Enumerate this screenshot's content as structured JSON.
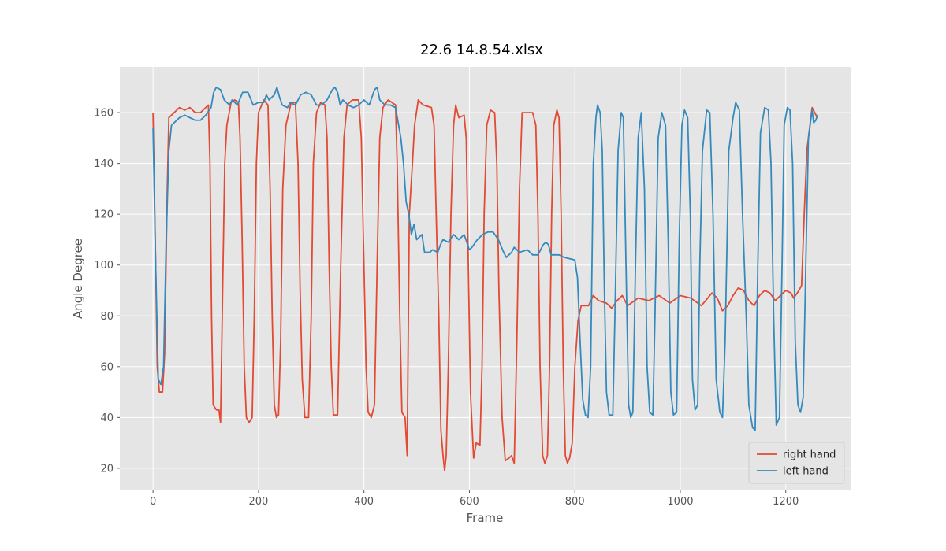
{
  "chart_data": {
    "type": "line",
    "title": "22.6 14.8.54.xlsx",
    "x_label": "Frame",
    "y_label": "Angle Degree",
    "xlim": [
      -63,
      1323
    ],
    "ylim": [
      11.6,
      178.0
    ],
    "xticks": [
      0,
      200,
      400,
      600,
      800,
      1000,
      1200
    ],
    "yticks": [
      20,
      40,
      60,
      80,
      100,
      120,
      140,
      160
    ],
    "grid": true,
    "legend": "lower right",
    "series": [
      {
        "name": "right hand",
        "color": "#E24A33",
        "x": [
          0,
          5,
          8,
          12,
          18,
          22,
          27,
          30,
          40,
          50,
          60,
          70,
          80,
          90,
          100,
          105,
          108,
          111,
          114,
          120,
          125,
          128,
          132,
          136,
          140,
          148,
          155,
          162,
          165,
          169,
          173,
          177,
          182,
          188,
          192,
          196,
          200,
          210,
          218,
          222,
          226,
          230,
          234,
          238,
          242,
          246,
          252,
          262,
          270,
          275,
          279,
          283,
          288,
          295,
          300,
          304,
          310,
          318,
          326,
          330,
          334,
          338,
          342,
          350,
          356,
          362,
          368,
          378,
          390,
          395,
          400,
          404,
          408,
          414,
          420,
          425,
          430,
          436,
          446,
          460,
          463,
          468,
          472,
          478,
          482,
          486,
          492,
          496,
          503,
          512,
          528,
          533,
          537,
          542,
          546,
          550,
          553,
          556,
          560,
          565,
          570,
          574,
          580,
          590,
          594,
          598,
          602,
          608,
          613,
          620,
          624,
          628,
          633,
          640,
          648,
          652,
          656,
          662,
          668,
          675,
          680,
          685,
          690,
          695,
          700,
          710,
          720,
          726,
          730,
          734,
          739,
          743,
          748,
          752,
          756,
          760,
          766,
          770,
          774,
          778,
          782,
          786,
          790,
          795,
          800,
          806,
          812,
          820,
          826,
          835,
          845,
          860,
          870,
          880,
          890,
          900,
          920,
          940,
          960,
          980,
          1000,
          1020,
          1040,
          1060,
          1070,
          1080,
          1090,
          1100,
          1110,
          1120,
          1130,
          1140,
          1150,
          1160,
          1170,
          1180,
          1190,
          1200,
          1210,
          1215,
          1225,
          1230,
          1235,
          1240,
          1250,
          1255,
          1260
        ],
        "values": [
          160,
          100,
          60,
          50,
          50,
          65,
          130,
          158,
          160,
          162,
          161,
          162,
          160,
          160,
          162,
          163,
          140,
          80,
          45,
          43,
          43,
          38,
          90,
          140,
          155,
          164,
          165,
          164,
          150,
          110,
          60,
          40,
          38,
          40,
          80,
          140,
          160,
          165,
          163,
          130,
          80,
          45,
          40,
          41,
          70,
          130,
          155,
          164,
          164,
          140,
          90,
          55,
          40,
          40,
          80,
          140,
          160,
          164,
          163,
          150,
          100,
          60,
          41,
          41,
          100,
          150,
          163,
          165,
          165,
          150,
          100,
          60,
          42,
          40,
          45,
          100,
          150,
          162,
          165,
          163,
          140,
          80,
          42,
          40,
          25,
          120,
          140,
          155,
          165,
          163,
          162,
          155,
          120,
          80,
          35,
          25,
          19,
          25,
          60,
          120,
          155,
          163,
          158,
          159,
          150,
          100,
          50,
          24,
          30,
          29,
          60,
          120,
          155,
          161,
          160,
          140,
          90,
          40,
          23,
          24,
          25,
          22,
          70,
          130,
          160,
          160,
          160,
          155,
          120,
          60,
          25,
          22,
          25,
          60,
          120,
          155,
          161,
          158,
          120,
          60,
          25,
          22,
          24,
          30,
          60,
          78,
          84,
          84,
          84,
          88,
          86,
          85,
          83,
          86,
          88,
          84,
          87,
          86,
          88,
          85,
          88,
          87,
          84,
          89,
          87,
          82,
          84,
          88,
          91,
          90,
          86,
          84,
          88,
          90,
          89,
          86,
          88,
          90,
          89,
          87,
          90,
          92,
          120,
          145,
          162,
          160,
          158
        ]
      },
      {
        "name": "left hand",
        "color": "#348ABD",
        "x": [
          0,
          5,
          10,
          15,
          20,
          25,
          30,
          35,
          50,
          60,
          70,
          80,
          90,
          100,
          110,
          115,
          120,
          128,
          135,
          145,
          150,
          160,
          170,
          180,
          190,
          200,
          210,
          215,
          220,
          230,
          235,
          240,
          245,
          255,
          260,
          270,
          280,
          290,
          300,
          305,
          310,
          320,
          330,
          340,
          345,
          350,
          355,
          360,
          370,
          380,
          390,
          400,
          410,
          420,
          425,
          430,
          440,
          450,
          460,
          470,
          475,
          480,
          485,
          490,
          495,
          500,
          510,
          515,
          525,
          530,
          540,
          545,
          550,
          560,
          570,
          580,
          590,
          600,
          605,
          615,
          625,
          635,
          645,
          655,
          665,
          670,
          680,
          685,
          695,
          710,
          720,
          730,
          740,
          745,
          750,
          755,
          765,
          770,
          780,
          800,
          805,
          810,
          815,
          820,
          825,
          830,
          835,
          840,
          843,
          848,
          852,
          856,
          860,
          865,
          872,
          876,
          882,
          888,
          892,
          897,
          902,
          906,
          910,
          915,
          920,
          926,
          932,
          937,
          942,
          948,
          952,
          958,
          965,
          972,
          977,
          982,
          987,
          993,
          998,
          1003,
          1008,
          1014,
          1019,
          1023,
          1028,
          1033,
          1037,
          1042,
          1050,
          1056,
          1062,
          1068,
          1075,
          1080,
          1085,
          1092,
          1100,
          1105,
          1112,
          1118,
          1125,
          1130,
          1137,
          1142,
          1147,
          1152,
          1160,
          1167,
          1172,
          1177,
          1182,
          1188,
          1193,
          1197,
          1203,
          1208,
          1213,
          1218,
          1223,
          1228,
          1233,
          1238,
          1243,
          1250,
          1253,
          1257,
          1260
        ],
        "values": [
          154,
          100,
          55,
          53,
          60,
          110,
          145,
          155,
          158,
          159,
          158,
          157,
          157,
          159,
          162,
          168,
          170,
          169,
          165,
          163,
          165,
          163,
          168,
          168,
          163,
          164,
          164,
          167,
          165,
          167,
          170,
          166,
          163,
          162,
          164,
          163,
          167,
          168,
          167,
          165,
          163,
          163,
          165,
          169,
          170,
          168,
          163,
          165,
          163,
          162,
          163,
          165,
          163,
          169,
          170,
          165,
          163,
          163,
          162,
          150,
          140,
          125,
          120,
          112,
          116,
          110,
          112,
          105,
          105,
          106,
          105,
          108,
          110,
          109,
          112,
          110,
          112,
          106,
          107,
          110,
          112,
          113,
          113,
          110,
          105,
          103,
          105,
          107,
          105,
          106,
          104,
          104,
          108,
          109,
          108,
          104,
          104,
          104,
          103,
          102,
          95,
          70,
          47,
          41,
          40,
          60,
          140,
          158,
          163,
          160,
          145,
          90,
          50,
          41,
          41,
          80,
          145,
          160,
          158,
          100,
          45,
          40,
          42,
          100,
          150,
          160,
          130,
          60,
          42,
          41,
          80,
          150,
          160,
          155,
          110,
          50,
          41,
          42,
          110,
          155,
          161,
          158,
          120,
          55,
          43,
          45,
          100,
          145,
          161,
          160,
          120,
          55,
          42,
          40,
          70,
          145,
          158,
          164,
          161,
          120,
          80,
          45,
          36,
          35,
          100,
          152,
          162,
          161,
          140,
          80,
          37,
          40,
          100,
          155,
          162,
          161,
          140,
          70,
          45,
          42,
          48,
          100,
          150,
          161,
          156,
          157,
          159
        ]
      }
    ]
  }
}
